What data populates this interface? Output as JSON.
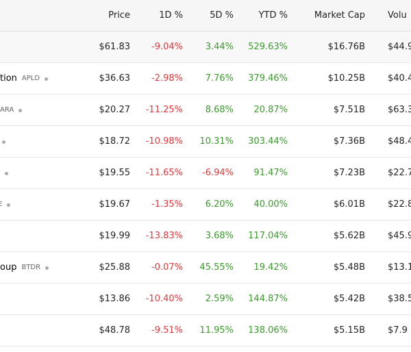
{
  "table": {
    "header": [
      "Price",
      "1D %",
      "5D %",
      "YTD %",
      "Market Cap",
      "Volu"
    ],
    "rows": [
      {
        "cells": [
          "$61.83",
          "-9.04%",
          "3.44%",
          "529.63%",
          "$16.76B",
          "$44.9"
        ],
        "highlight": true
      },
      {
        "name": "tion",
        "ticker": "APLD",
        "dot": true,
        "cells": [
          "$36.63",
          "-2.98%",
          "7.76%",
          "379.46%",
          "$10.25B",
          "$40.4"
        ]
      },
      {
        "ticker": "ARA",
        "dot": true,
        "cells": [
          "$20.27",
          "-11.25%",
          "8.68%",
          "20.87%",
          "$7.51B",
          "$63.3"
        ]
      },
      {
        "dot": true,
        "cells": [
          "$18.72",
          "-10.98%",
          "10.31%",
          "303.44%",
          "$7.36B",
          "$48.4"
        ]
      },
      {
        "dot": true,
        "cells": [
          "$19.55",
          "-11.65%",
          "-6.94%",
          "91.47%",
          "$7.23B",
          "$22.7"
        ]
      },
      {
        "ticker": "E",
        "dot": true,
        "cells": [
          "$19.67",
          "-1.35%",
          "6.20%",
          "40.00%",
          "$6.01B",
          "$22.8"
        ]
      },
      {
        "cells": [
          "$19.99",
          "-13.83%",
          "3.68%",
          "117.04%",
          "$5.62B",
          "$45.9"
        ]
      },
      {
        "name": "oup",
        "ticker": "BTDR",
        "dot": true,
        "cells": [
          "$25.88",
          "-0.07%",
          "45.55%",
          "19.42%",
          "$5.48B",
          "$13.1"
        ]
      },
      {
        "cells": [
          "$13.86",
          "-10.40%",
          "2.59%",
          "144.87%",
          "$5.42B",
          "$38.5"
        ]
      },
      {
        "cells": [
          "$48.78",
          "-9.51%",
          "11.95%",
          "138.06%",
          "$5.15B",
          "$7.9"
        ]
      }
    ]
  }
}
